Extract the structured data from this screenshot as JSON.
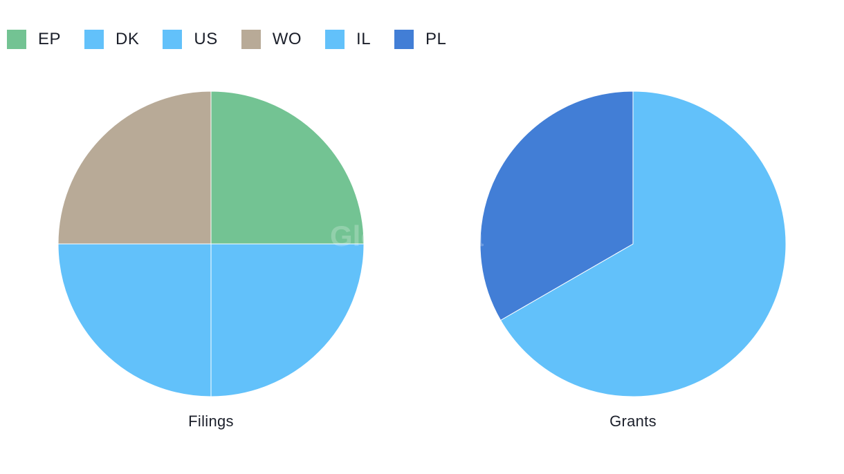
{
  "legend": [
    {
      "label": "EP",
      "color": "#73c393"
    },
    {
      "label": "DK",
      "color": "#62c1fa"
    },
    {
      "label": "US",
      "color": "#62c1fa"
    },
    {
      "label": "WO",
      "color": "#b8aa97"
    },
    {
      "label": "IL",
      "color": "#62c1fa"
    },
    {
      "label": "PL",
      "color": "#427ed6"
    }
  ],
  "watermark": "GlobalData",
  "chart_data": [
    {
      "type": "pie",
      "title": "Filings",
      "slices": [
        {
          "label": "EP",
          "value": 1,
          "color": "#73c393"
        },
        {
          "label": "US",
          "value": 1,
          "color": "#62c1fa"
        },
        {
          "label": "DK",
          "value": 1,
          "color": "#62c1fa"
        },
        {
          "label": "WO",
          "value": 1,
          "color": "#b8aa97"
        }
      ]
    },
    {
      "type": "pie",
      "title": "Grants",
      "slices": [
        {
          "label": "IL",
          "value": 2,
          "color": "#62c1fa"
        },
        {
          "label": "PL",
          "value": 1,
          "color": "#427ed6"
        }
      ]
    }
  ]
}
